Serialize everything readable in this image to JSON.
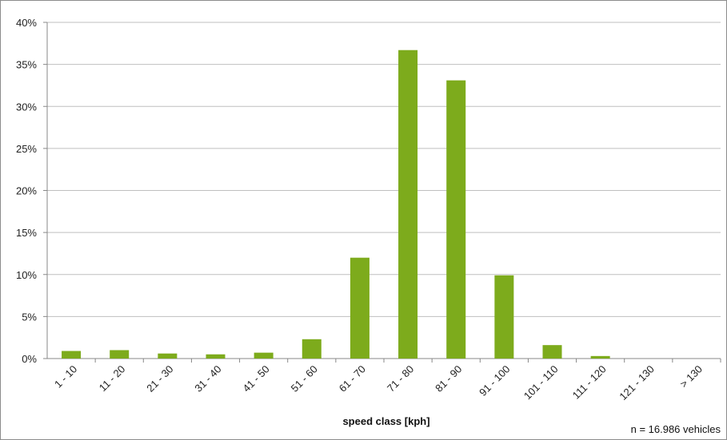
{
  "chart_data": {
    "type": "bar",
    "categories": [
      "1 - 10",
      "11 - 20",
      "21 - 30",
      "31 - 40",
      "41 - 50",
      "51 - 60",
      "61 - 70",
      "71 - 80",
      "81 - 90",
      "91 - 100",
      "101 - 110",
      "111 - 120",
      "121 - 130",
      "> 130"
    ],
    "values": [
      0.9,
      1.0,
      0.6,
      0.5,
      0.7,
      2.3,
      12.0,
      36.7,
      33.1,
      9.9,
      1.6,
      0.3,
      0.0,
      0.0
    ],
    "xlabel": "speed class [kph]",
    "ylabel": "",
    "ylim": [
      0,
      40
    ],
    "yticks": [
      "0%",
      "5%",
      "10%",
      "15%",
      "20%",
      "25%",
      "30%",
      "35%",
      "40%"
    ],
    "y_unit": "%",
    "grid": true,
    "bar_color": "#7dab1c",
    "annotation": "n = 16.986 vehicles"
  }
}
